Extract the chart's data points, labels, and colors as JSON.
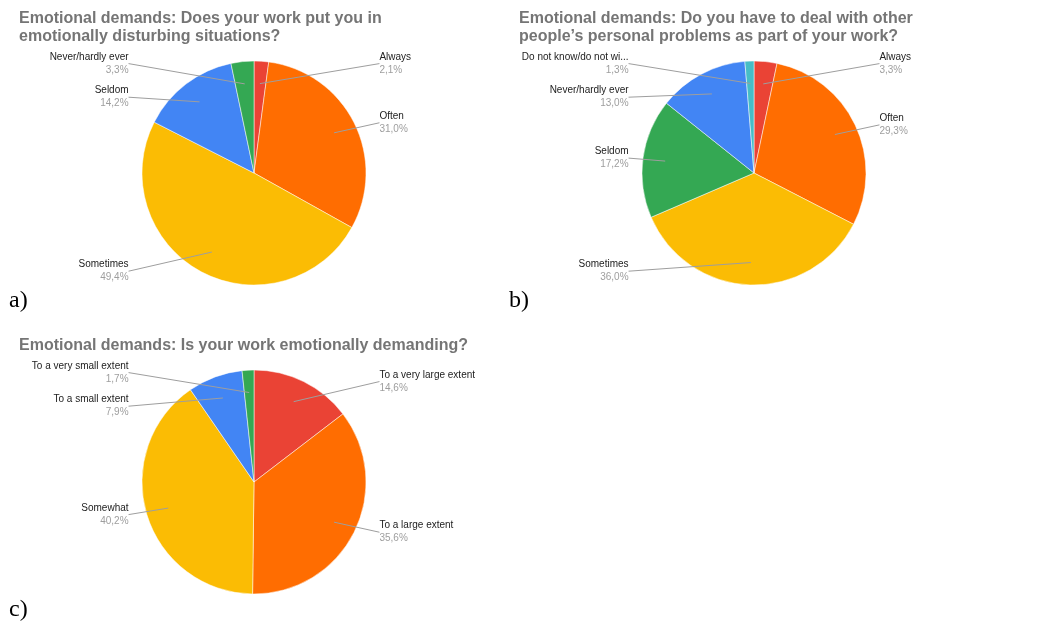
{
  "chart_data": [
    {
      "type": "pie",
      "title": "Emotional demands: Does your work put you in emotionally disturbing situations?",
      "categories": [
        "Always",
        "Often",
        "Sometimes",
        "Seldom",
        "Never/hardly ever"
      ],
      "values": [
        2.1,
        31.0,
        49.4,
        14.2,
        3.3
      ],
      "colors": [
        "#ea4335",
        "#ff6d01",
        "#fbbc04",
        "#4285f4",
        "#34a853"
      ],
      "value_labels": [
        "2,1%",
        "31,0%",
        "49,4%",
        "14,2%",
        "3,3%"
      ],
      "annotations": [
        "a)"
      ]
    },
    {
      "type": "pie",
      "title": "Emotional demands: Do you have to deal with other people’s personal problems as part of your work?",
      "categories": [
        "Always",
        "Often",
        "Sometimes",
        "Seldom",
        "Never/hardly ever",
        "Do not know/do not wi..."
      ],
      "values": [
        3.3,
        29.3,
        36.0,
        17.2,
        13.0,
        1.3
      ],
      "colors": [
        "#ea4335",
        "#ff6d01",
        "#fbbc04",
        "#34a853",
        "#4285f4",
        "#46bdc6"
      ],
      "value_labels": [
        "3,3%",
        "29,3%",
        "36,0%",
        "17,2%",
        "13,0%",
        "1,3%"
      ],
      "annotations": [
        "b)"
      ]
    },
    {
      "type": "pie",
      "title": "Emotional demands: Is your work emotionally demanding?",
      "categories": [
        "To a very large extent",
        "To a large extent",
        "Somewhat",
        "To a small extent",
        "To a very small extent"
      ],
      "values": [
        14.6,
        35.6,
        40.2,
        7.9,
        1.7
      ],
      "colors": [
        "#ea4335",
        "#ff6d01",
        "#fbbc04",
        "#4285f4",
        "#34a853"
      ],
      "value_labels": [
        "14,6%",
        "35,6%",
        "40,2%",
        "7,9%",
        "1,7%"
      ],
      "annotations": [
        "c)"
      ]
    }
  ]
}
